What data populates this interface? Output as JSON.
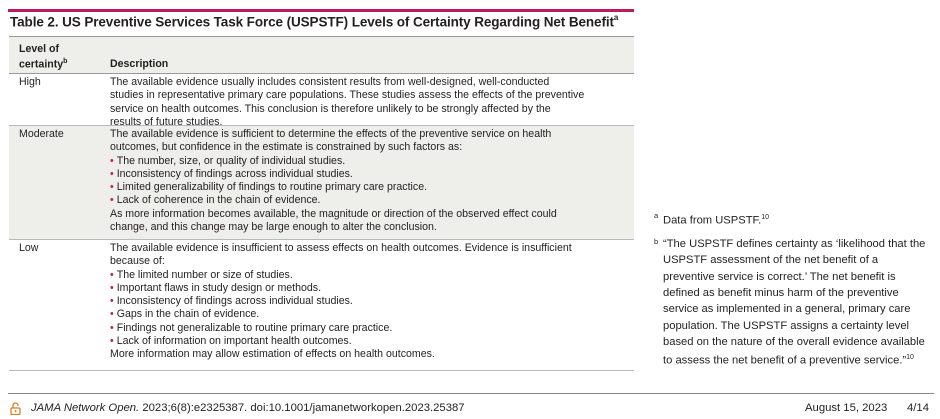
{
  "title": {
    "text": "Table 2. US Preventive Services Task Force (USPSTF) Levels of Certainty Regarding Net Benefit",
    "sup": "a"
  },
  "table": {
    "headers": {
      "level": "Level of certainty",
      "level_sup": "b",
      "description": "Description"
    },
    "rows": [
      {
        "level": "High",
        "lines": [
          "The available evidence usually includes consistent results from well-designed, well-conducted",
          "studies in representative primary care populations. These studies assess the effects of the preventive",
          "service on health outcomes. This conclusion is therefore unlikely to be strongly affected by the",
          "results of future studies."
        ]
      },
      {
        "level": "Moderate",
        "lines": [
          "The available evidence is sufficient to determine the effects of the preventive service on health",
          "outcomes, but confidence in the estimate is constrained by such factors as:"
        ],
        "bullets": [
          "The number, size, or quality of individual studies.",
          "Inconsistency of findings across individual studies.",
          "Limited generalizability of findings to routine primary care practice.",
          "Lack of coherence in the chain of evidence."
        ],
        "after": [
          "As more information becomes available, the magnitude or direction of the observed effect could",
          "change, and this change may be large enough to alter the conclusion."
        ]
      },
      {
        "level": "Low",
        "lines": [
          "The available evidence is insufficient to assess effects on health outcomes. Evidence is insufficient",
          "because of:"
        ],
        "bullets": [
          "The limited number or size of studies.",
          "Important flaws in study design or methods.",
          "Inconsistency of findings across individual studies.",
          "Gaps in the chain of evidence.",
          "Findings not generalizable to routine primary care practice.",
          "Lack of information on important health outcomes."
        ],
        "after": [
          "More information may allow estimation of effects on health outcomes."
        ]
      }
    ]
  },
  "footnotes": {
    "a": {
      "mark": "a",
      "text": "Data from USPSTF.",
      "ref": "10"
    },
    "b": {
      "mark": "b",
      "lines": [
        "“The USPSTF defines certainty as ‘likelihood that the",
        "USPSTF assessment of the net benefit of a",
        "preventive service is correct.’ The net benefit is",
        "defined as benefit minus harm of the preventive",
        "service as implemented in a general, primary care",
        "population. The USPSTF assigns a certainty level",
        "based on the nature of the overall evidence available",
        "to assess the net benefit of a preventive service.”"
      ],
      "ref": "10"
    }
  },
  "footer": {
    "lock_icon": "open-access-lock-icon",
    "journal": "JAMA Network Open.",
    "citation": " 2023;6(8):e2325387. doi:10.1001/jamanetworkopen.2023.25387",
    "date": "August 15, 2023",
    "page": "4/14"
  },
  "colors": {
    "accent": "#c0185a",
    "header_bg": "#eeeeea",
    "text": "#231f20"
  }
}
